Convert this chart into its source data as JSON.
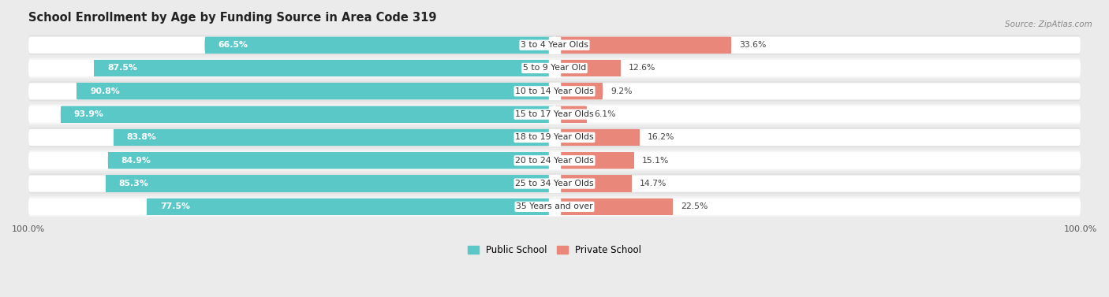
{
  "title": "School Enrollment by Age by Funding Source in Area Code 319",
  "source": "Source: ZipAtlas.com",
  "categories": [
    "3 to 4 Year Olds",
    "5 to 9 Year Old",
    "10 to 14 Year Olds",
    "15 to 17 Year Olds",
    "18 to 19 Year Olds",
    "20 to 24 Year Olds",
    "25 to 34 Year Olds",
    "35 Years and over"
  ],
  "public_values": [
    66.5,
    87.5,
    90.8,
    93.9,
    83.8,
    84.9,
    85.3,
    77.5
  ],
  "private_values": [
    33.6,
    12.6,
    9.2,
    6.1,
    16.2,
    15.1,
    14.7,
    22.5
  ],
  "public_labels": [
    "66.5%",
    "87.5%",
    "90.8%",
    "93.9%",
    "83.8%",
    "84.9%",
    "85.3%",
    "77.5%"
  ],
  "private_labels": [
    "33.6%",
    "12.6%",
    "9.2%",
    "6.1%",
    "16.2%",
    "15.1%",
    "14.7%",
    "22.5%"
  ],
  "public_color": "#5BC8C8",
  "private_color": "#E8877A",
  "bg_color": "#EBEBEB",
  "row_light": "#F5F5F5",
  "row_dark": "#E2E2E2",
  "title_fontsize": 10.5,
  "label_fontsize": 7.8,
  "cat_fontsize": 7.8,
  "legend_public": "Public School",
  "legend_private": "Private School"
}
